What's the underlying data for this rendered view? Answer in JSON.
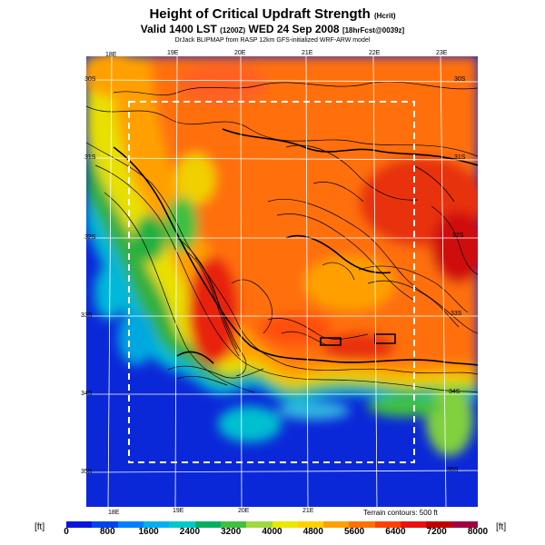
{
  "title": {
    "main": "Height of Critical Updraft Strength",
    "main_unit": "(Hcrit)",
    "valid": "Valid 1400 LST",
    "valid_utc": "(1200Z)",
    "valid_date": "WED 24 Sep 2008",
    "forecast_tag": "[18hrFcst@0039z]",
    "credit": "DrJack BLIPMAP from RASP 12km GFS-initialized WRF-ARW model"
  },
  "longitude_labels_top": [
    "18E",
    "19E",
    "20E",
    "21E",
    "22E",
    "23E"
  ],
  "longitude_labels_bottom": [
    "18E",
    "19E",
    "20E",
    "21E"
  ],
  "latitude_labels_left": [
    "30S",
    "31S",
    "32S",
    "33S",
    "34S",
    "35S"
  ],
  "latitude_labels_right": [
    "30S",
    "31S",
    "32S",
    "33S",
    "34S",
    "35S"
  ],
  "terrain_note": "Terrain contours: 500 ft",
  "colorbar": {
    "unit_left": "[ft]",
    "unit_right": "[ft]",
    "ticks": [
      "0",
      "800",
      "1600",
      "2400",
      "3200",
      "4000",
      "4800",
      "5600",
      "6400",
      "7200",
      "8000"
    ],
    "colors": [
      "#0b15d9",
      "#0044ee",
      "#0080ff",
      "#00b0f0",
      "#00c8c8",
      "#00b060",
      "#40c040",
      "#a0d840",
      "#e8e800",
      "#ffd000",
      "#ffa000",
      "#ff7000",
      "#ff4000",
      "#e81010",
      "#c00000",
      "#a00040"
    ]
  },
  "map": {
    "ocean_color": "#0b28d8",
    "land_high_color": "#ff6a1a",
    "dashed_box_color": "#ffffff"
  }
}
